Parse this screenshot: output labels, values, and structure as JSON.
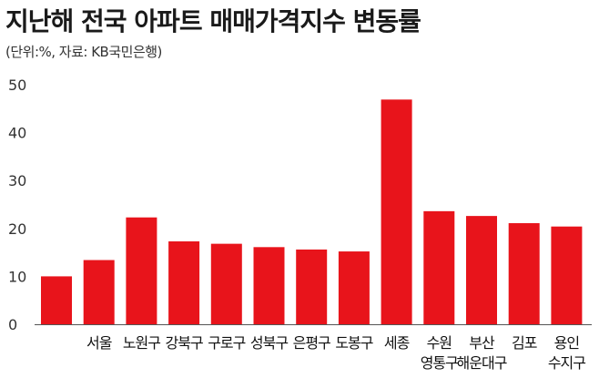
{
  "title": "지난해 전국 아파트 매매가격지수 변동률",
  "subtitle": "(단위:%, 자료: KB국민은행)",
  "colors": {
    "bar": "#e8141b",
    "axis": "#555555"
  },
  "chart_data": {
    "type": "bar",
    "title": "지난해 전국 아파트 매매가격지수 변동률",
    "xlabel": "",
    "ylabel": "",
    "ylim": [
      0,
      50
    ],
    "yticks": [
      0,
      10,
      20,
      30,
      40,
      50
    ],
    "grid": false,
    "categories": [
      [
        ""
      ],
      [
        "서울"
      ],
      [
        "노원구"
      ],
      [
        "강북구"
      ],
      [
        "구로구"
      ],
      [
        "성북구"
      ],
      [
        "은평구"
      ],
      [
        "도봉구"
      ],
      [
        "세종"
      ],
      [
        "수원",
        "영통구"
      ],
      [
        "부산",
        "해운대구"
      ],
      [
        "김포"
      ],
      [
        "용인",
        "수지구"
      ]
    ],
    "values": [
      10.0,
      13.4,
      22.3,
      17.3,
      16.8,
      16.1,
      15.6,
      15.2,
      46.9,
      23.6,
      22.6,
      21.1,
      20.4
    ]
  }
}
